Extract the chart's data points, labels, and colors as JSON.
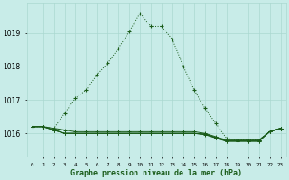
{
  "title": "Graphe pression niveau de la mer (hPa)",
  "background_color": "#c8ece8",
  "grid_color": "#aad8d0",
  "line_color": "#1a5c1a",
  "x_labels": [
    "0",
    "1",
    "2",
    "3",
    "4",
    "5",
    "6",
    "7",
    "8",
    "9",
    "10",
    "11",
    "12",
    "13",
    "14",
    "15",
    "16",
    "17",
    "18",
    "19",
    "20",
    "21",
    "22",
    "23"
  ],
  "ylim": [
    1015.3,
    1019.9
  ],
  "yticks": [
    1016,
    1017,
    1018,
    1019
  ],
  "figsize": [
    3.2,
    2.0
  ],
  "dpi": 100,
  "series_dotted": [
    1016.2,
    1016.2,
    1016.15,
    1016.6,
    1017.05,
    1017.3,
    1017.75,
    1018.1,
    1018.55,
    1019.05,
    1019.6,
    1019.2,
    1019.2,
    1018.8,
    1018.0,
    1017.3,
    1016.75,
    1016.3,
    1015.85,
    1015.8,
    1015.8,
    1015.8,
    1016.05,
    1016.15
  ],
  "series_solid": [
    [
      1016.2,
      1016.2,
      1016.15,
      1016.1,
      1016.05,
      1016.05,
      1016.05,
      1016.05,
      1016.05,
      1016.05,
      1016.05,
      1016.05,
      1016.05,
      1016.05,
      1016.05,
      1016.05,
      1016.0,
      1015.9,
      1015.8,
      1015.8,
      1015.8,
      1015.8,
      1016.05,
      1016.15
    ],
    [
      1016.2,
      1016.2,
      1016.1,
      1016.0,
      1016.0,
      1016.0,
      1016.0,
      1016.0,
      1016.0,
      1016.0,
      1016.0,
      1016.0,
      1016.0,
      1016.0,
      1016.0,
      1016.0,
      1015.98,
      1015.88,
      1015.78,
      1015.78,
      1015.78,
      1015.78,
      1016.05,
      1016.15
    ],
    [
      1016.2,
      1016.2,
      1016.1,
      1016.0,
      1016.0,
      1016.0,
      1016.0,
      1016.0,
      1016.0,
      1016.0,
      1016.0,
      1016.0,
      1016.0,
      1016.0,
      1016.0,
      1016.0,
      1015.97,
      1015.87,
      1015.77,
      1015.77,
      1015.77,
      1015.77,
      1016.05,
      1016.15
    ],
    [
      1016.2,
      1016.2,
      1016.1,
      1016.0,
      1016.0,
      1016.0,
      1016.0,
      1016.0,
      1016.0,
      1016.0,
      1016.0,
      1016.0,
      1016.0,
      1016.0,
      1016.0,
      1016.0,
      1015.96,
      1015.86,
      1015.76,
      1015.76,
      1015.76,
      1015.76,
      1016.05,
      1016.15
    ]
  ]
}
